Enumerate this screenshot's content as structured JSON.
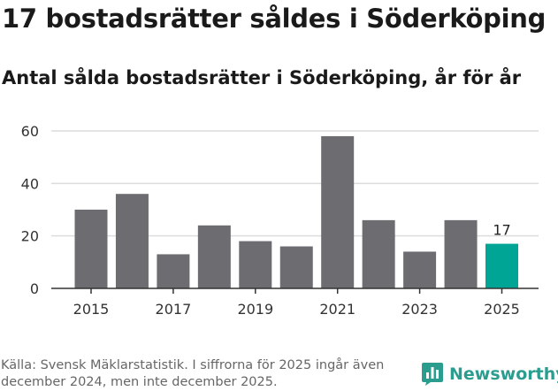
{
  "header": {
    "title": "17 bostadsrätter såldes i Söderköping",
    "subtitle": "Antal sålda bostadsrätter i Söderköping, år för år"
  },
  "footer": {
    "source": "Källa: Svensk Mäklarstatistik. I siffrorna för 2025 ingår även december 2024, men inte december 2025.",
    "logo_text": "Newsworthy"
  },
  "colors": {
    "bar": "#6d6c71",
    "highlight": "#00a596",
    "grid": "#dcdcdc",
    "axis": "#333333",
    "brand": "#2a9d8f"
  },
  "icons": {
    "logo": "bar-chart-logo-icon"
  },
  "chart_data": {
    "type": "bar",
    "title": "Antal sålda bostadsrätter i Söderköping, år för år",
    "xlabel": "",
    "ylabel": "",
    "categories": [
      "2015",
      "2016",
      "2017",
      "2018",
      "2019",
      "2020",
      "2021",
      "2022",
      "2023",
      "2024",
      "2025"
    ],
    "values": [
      30,
      36,
      13,
      24,
      18,
      16,
      58,
      26,
      14,
      26,
      17
    ],
    "highlight_index": 10,
    "data_labels": [
      {
        "index": 10,
        "text": "17"
      }
    ],
    "x_tick_labels": [
      "2015",
      "2017",
      "2019",
      "2021",
      "2023",
      "2025"
    ],
    "y_ticks": [
      0,
      20,
      40,
      60
    ],
    "ylim": [
      0,
      62
    ],
    "grid": true,
    "legend": "none"
  }
}
